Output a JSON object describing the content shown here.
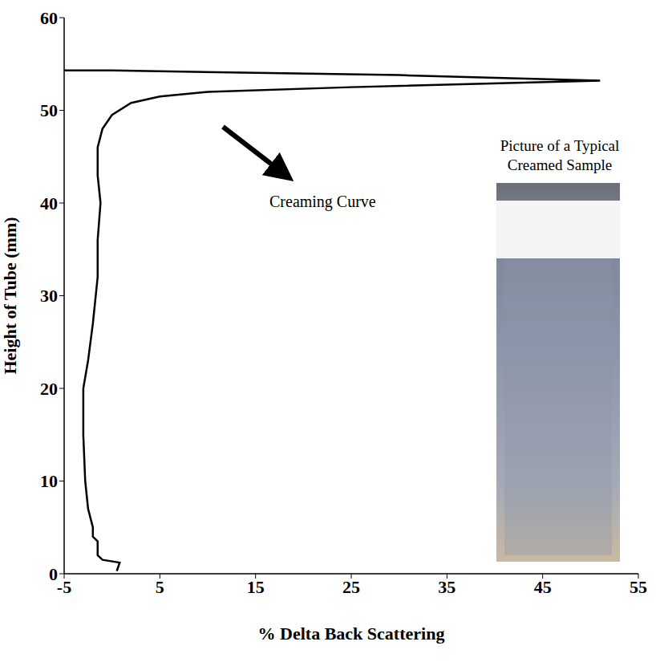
{
  "chart_data": {
    "type": "line",
    "xlabel": "% Delta Back Scattering",
    "ylabel": "Height of Tube (mm)",
    "annotations": [
      "Creaming Curve",
      "Picture of a Typical Creamed Sample"
    ],
    "x": [
      0.5,
      0.8,
      -1,
      -1.5,
      -1.5,
      -2,
      -2,
      -2.5,
      -2.8,
      -3,
      -3,
      -2.5,
      -2,
      -1.5,
      -1.5,
      -1.2,
      -1.5,
      -1.5,
      -1,
      0,
      2,
      5,
      10,
      25,
      51,
      30,
      0,
      -5
    ],
    "values": [
      0.3,
      1.2,
      1.5,
      2,
      3.5,
      4,
      5,
      7,
      10,
      15,
      20,
      23,
      27,
      32,
      36,
      40,
      43,
      46,
      48,
      49.5,
      50.8,
      51.5,
      52,
      52.5,
      53.2,
      53.8,
      54.3,
      54.3
    ],
    "color": "#000000",
    "xlim": [
      -5,
      55
    ],
    "xticks": [
      -5,
      5,
      15,
      25,
      35,
      45,
      55
    ],
    "ylim": [
      0,
      60
    ],
    "yticks": [
      0,
      10,
      20,
      30,
      40,
      50,
      60
    ],
    "grid": false
  }
}
